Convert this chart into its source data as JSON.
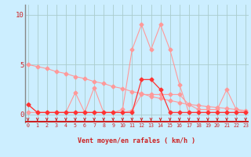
{
  "x": [
    0,
    1,
    2,
    3,
    4,
    5,
    6,
    7,
    8,
    9,
    10,
    11,
    12,
    13,
    14,
    15,
    16,
    17,
    18,
    19,
    20,
    21,
    22,
    23
  ],
  "y_diagonal": [
    5.0,
    4.8,
    4.6,
    4.3,
    4.1,
    3.8,
    3.6,
    3.3,
    3.1,
    2.8,
    2.6,
    2.3,
    2.1,
    1.8,
    1.6,
    1.4,
    1.2,
    1.0,
    0.9,
    0.8,
    0.7,
    0.6,
    0.5,
    0.4
  ],
  "y_mid": [
    1.0,
    0.2,
    0.2,
    0.2,
    0.2,
    2.2,
    0.2,
    2.7,
    0.2,
    0.2,
    0.2,
    0.4,
    2.0,
    2.0,
    2.0,
    2.0,
    2.0,
    1.0,
    0.5,
    0.5,
    0.5,
    2.5,
    0.5,
    0.2
  ],
  "y_high": [
    0.2,
    0.2,
    0.2,
    0.2,
    0.2,
    0.2,
    0.2,
    0.2,
    0.2,
    0.2,
    0.5,
    6.5,
    9.0,
    6.5,
    9.0,
    6.5,
    3.0,
    0.2,
    0.2,
    0.2,
    0.2,
    0.2,
    0.2,
    0.2
  ],
  "y_low": [
    1.0,
    0.2,
    0.2,
    0.2,
    0.2,
    0.2,
    0.2,
    0.2,
    0.2,
    0.2,
    0.2,
    0.2,
    3.5,
    3.5,
    2.5,
    0.2,
    0.2,
    0.2,
    0.2,
    0.2,
    0.2,
    0.2,
    0.2,
    0.2
  ],
  "bg_color": "#cceeff",
  "grid_color": "#aacccc",
  "line_light": "#ff9999",
  "line_dark": "#ff3333",
  "xlabel": "Vent moyen/en rafales ( km/h )",
  "yticks": [
    0,
    5,
    10
  ],
  "xticks": [
    0,
    1,
    2,
    3,
    4,
    5,
    6,
    7,
    8,
    9,
    10,
    11,
    12,
    13,
    14,
    15,
    16,
    17,
    18,
    19,
    20,
    21,
    22,
    23
  ],
  "xlim": [
    -0.3,
    23.3
  ],
  "ylim": [
    -0.8,
    11.0
  ],
  "red": "#cc2222"
}
